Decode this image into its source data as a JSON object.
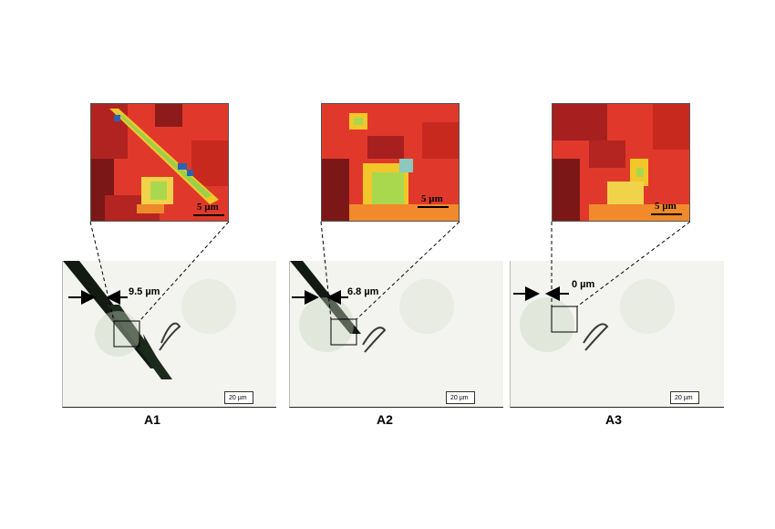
{
  "panels": [
    {
      "id": "A1",
      "label": "A1",
      "heatmap_scale": "5 µm",
      "gap": "9.5 µm",
      "scalebar": "20 µm"
    },
    {
      "id": "A2",
      "label": "A2",
      "heatmap_scale": "5 µm",
      "gap": "6.8 µm",
      "scalebar": "20 µm"
    },
    {
      "id": "A3",
      "label": "A3",
      "heatmap_scale": "5 µm",
      "gap": "0 µm",
      "scalebar": "20 µm"
    }
  ],
  "colors": {
    "heat_high": "#e23a2a",
    "heat_dark": "#8b1a1a",
    "heat_mid": "#f0c020",
    "heat_low": "#2a5fb0",
    "micro_bg": "#f4f5f0"
  }
}
